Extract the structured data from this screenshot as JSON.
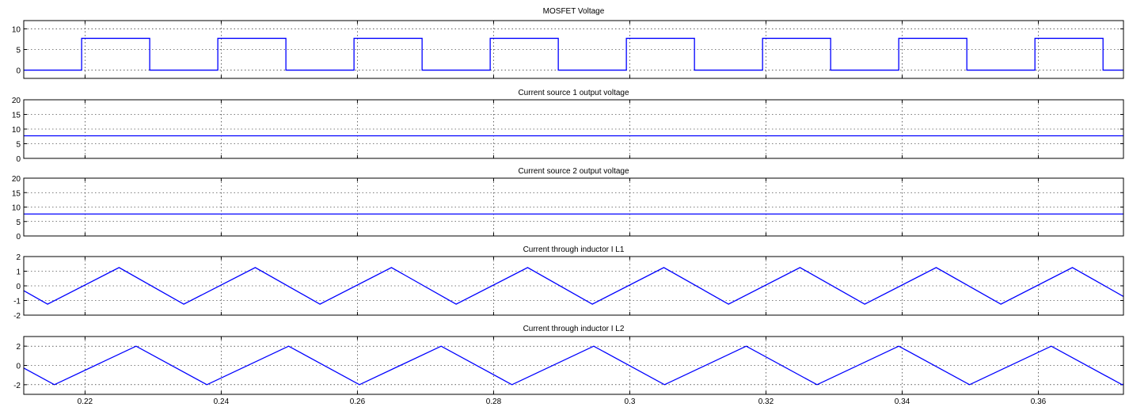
{
  "colors": {
    "trace": "#0000ff",
    "grid": "#000000",
    "frame": "#000000",
    "background": "#ffffff"
  },
  "x_ticks": [
    "0.22",
    "0.24",
    "0.26",
    "0.28",
    "0.3",
    "0.32",
    "0.34",
    "0.36"
  ],
  "chart_data": [
    {
      "type": "line",
      "title": "MOSFET Voltage",
      "xlim": [
        0.211,
        0.3725
      ],
      "ylim": [
        -2,
        12
      ],
      "yticks": [
        0,
        5,
        10
      ],
      "grid": true,
      "waveform": "square",
      "low": 0,
      "high": 7.7,
      "period": 0.02,
      "first_rise": 0.2195,
      "duty": 0.5
    },
    {
      "type": "line",
      "title": "Current source 1 output voltage",
      "xlim": [
        0.211,
        0.3725
      ],
      "ylim": [
        0,
        20
      ],
      "yticks": [
        0,
        5,
        10,
        15,
        20
      ],
      "grid": true,
      "waveform": "constant",
      "value": 7.7
    },
    {
      "type": "line",
      "title": "Current source 2 output voltage",
      "xlim": [
        0.211,
        0.3725
      ],
      "ylim": [
        0,
        20
      ],
      "yticks": [
        0,
        5,
        10,
        15,
        20
      ],
      "grid": true,
      "waveform": "constant",
      "value": 7.6
    },
    {
      "type": "line",
      "title": "Current through inductor I L1",
      "xlim": [
        0.211,
        0.3725
      ],
      "ylim": [
        -2,
        2
      ],
      "yticks": [
        -2,
        -1,
        0,
        1,
        2
      ],
      "grid": true,
      "waveform": "triangle",
      "min": -1.25,
      "max": 1.25,
      "period": 0.02,
      "first_min": 0.2145,
      "rise_time": 0.0105
    },
    {
      "type": "line",
      "title": "Current through inductor I L2",
      "xlim": [
        0.211,
        0.3725
      ],
      "ylim": [
        -3,
        3
      ],
      "yticks": [
        -2,
        0,
        2
      ],
      "grid": true,
      "waveform": "triangle",
      "min": -2.0,
      "max": 2.0,
      "period": 0.0224,
      "first_min": 0.2155,
      "rise_time": 0.012
    }
  ]
}
